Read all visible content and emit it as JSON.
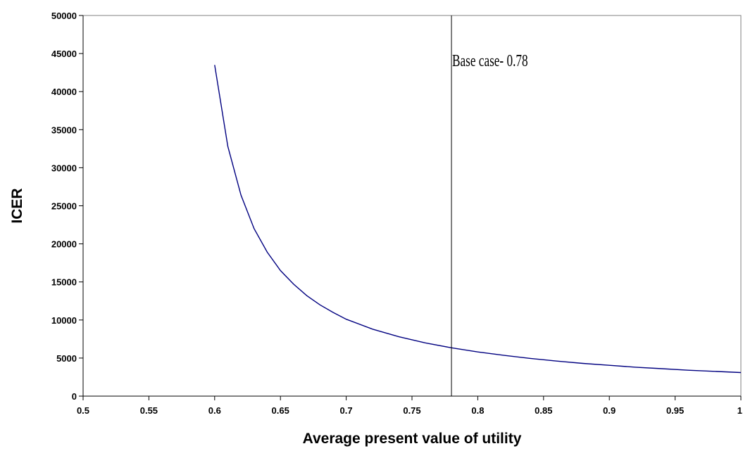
{
  "chart_data": {
    "type": "line",
    "title": "",
    "xlabel": "Average present value of utility",
    "ylabel": "ICER",
    "xlim": [
      0.5,
      1
    ],
    "ylim": [
      0,
      50000
    ],
    "x_ticks": [
      "0.5",
      "0.55",
      "0.6",
      "0.65",
      "0.7",
      "0.75",
      "0.8",
      "0.85",
      "0.9",
      "0.95",
      "1"
    ],
    "y_ticks": [
      "0",
      "5000",
      "10000",
      "15000",
      "20000",
      "25000",
      "30000",
      "35000",
      "40000",
      "45000",
      "50000"
    ],
    "grid": false,
    "legend": "none",
    "series": [
      {
        "color": "#000080",
        "x": [
          0.6,
          0.61,
          0.62,
          0.63,
          0.64,
          0.65,
          0.66,
          0.67,
          0.68,
          0.69,
          0.7,
          0.72,
          0.74,
          0.76,
          0.78,
          0.8,
          0.82,
          0.84,
          0.86,
          0.88,
          0.9,
          0.92,
          0.94,
          0.96,
          0.98,
          1.0
        ],
        "y": [
          43500,
          32800,
          26400,
          22000,
          18900,
          16500,
          14700,
          13200,
          12000,
          11000,
          10100,
          8800,
          7800,
          7000,
          6350,
          5800,
          5350,
          4950,
          4600,
          4300,
          4050,
          3800,
          3600,
          3400,
          3250,
          3100
        ]
      }
    ],
    "reference_line": {
      "x": 0.78,
      "color": "#000000",
      "label": "Base case- 0.78"
    }
  }
}
